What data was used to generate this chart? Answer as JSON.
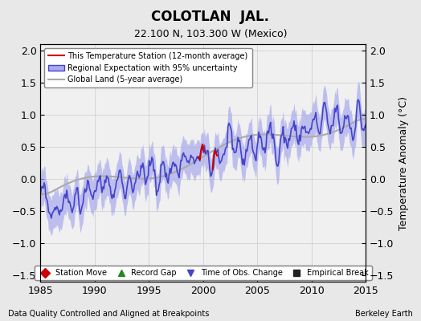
{
  "title": "COLOTLAN  JAL.",
  "subtitle": "22.100 N, 103.300 W (Mexico)",
  "ylabel": "Temperature Anomaly (°C)",
  "xlabel_left": "Data Quality Controlled and Aligned at Breakpoints",
  "xlabel_right": "Berkeley Earth",
  "year_start": 1985,
  "year_end": 2015,
  "ylim": [
    -1.6,
    2.1
  ],
  "yticks": [
    -1.5,
    -1.0,
    -0.5,
    0.0,
    0.5,
    1.0,
    1.5,
    2.0
  ],
  "xticks": [
    1985,
    1990,
    1995,
    2000,
    2005,
    2010,
    2015
  ],
  "bg_color": "#e8e8e8",
  "plot_bg_color": "#f0f0f0",
  "regional_color": "#4444cc",
  "regional_fill_color": "#aaaaee",
  "global_color": "#aaaaaa",
  "station_color": "#cc0000",
  "legend_items": [
    {
      "label": "This Temperature Station (12-month average)",
      "color": "#cc0000",
      "lw": 1.5
    },
    {
      "label": "Regional Expectation with 95% uncertainty",
      "color": "#4444cc",
      "lw": 1.5
    },
    {
      "label": "Global Land (5-year average)",
      "color": "#aaaaaa",
      "lw": 1.5
    }
  ],
  "marker_legend": [
    {
      "marker": "D",
      "color": "#cc0000",
      "label": "Station Move"
    },
    {
      "marker": "^",
      "color": "#228822",
      "label": "Record Gap"
    },
    {
      "marker": "v",
      "color": "#4444cc",
      "label": "Time of Obs. Change"
    },
    {
      "marker": "s",
      "color": "#222222",
      "label": "Empirical Break"
    }
  ]
}
